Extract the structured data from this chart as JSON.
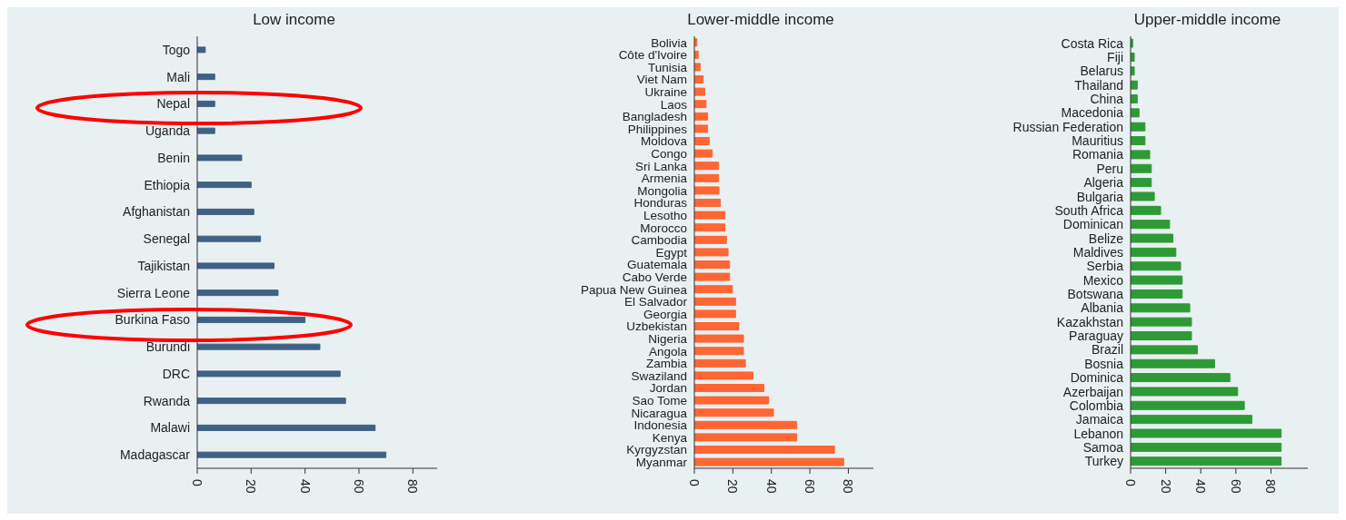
{
  "chart_data": [
    {
      "type": "bar",
      "orientation": "horizontal",
      "title": "Low income",
      "color": "#3f6184",
      "xlim": [
        0,
        89
      ],
      "xticks": [
        0,
        20,
        40,
        60,
        80
      ],
      "categories": [
        "Togo",
        "Mali",
        "Nepal",
        "Uganda",
        "Benin",
        "Ethiopia",
        "Afghanistan",
        "Senegal",
        "Tajikistan",
        "Sierra Leone",
        "Burkina Faso",
        "Burundi",
        "DRC",
        "Rwanda",
        "Malawi",
        "Madagascar"
      ],
      "values": [
        3,
        6.5,
        6.5,
        6.5,
        16.5,
        20,
        21,
        23.5,
        28.5,
        30,
        40,
        45.5,
        53,
        55,
        66,
        70
      ]
    },
    {
      "type": "bar",
      "orientation": "horizontal",
      "title": "Lower-middle income",
      "color": "#ff6633",
      "xlim": [
        0,
        93
      ],
      "xticks": [
        0,
        20,
        40,
        60,
        80
      ],
      "categories": [
        "Bolivia",
        "Côte d'Ivoire",
        "Tunisia",
        "Viet Nam",
        "Ukraine",
        "Laos",
        "Bangladesh",
        "Philippines",
        "Moldova",
        "Congo",
        "Sri Lanka",
        "Armenia",
        "Mongolia",
        "Honduras",
        "Lesotho",
        "Morocco",
        "Cambodia",
        "Egypt",
        "Guatemala",
        "Cabo Verde",
        "Papua New Guinea",
        "El Salvador",
        "Georgia",
        "Uzbekistan",
        "Nigeria",
        "Angola",
        "Zambia",
        "Swaziland",
        "Jordan",
        "Sao Tome",
        "Nicaragua",
        "Indonesia",
        "Kenya",
        "Kyrgyzstan",
        "Myanmar"
      ],
      "values": [
        1.3,
        2,
        3,
        4.6,
        5.4,
        6.1,
        6.9,
        6.9,
        7.7,
        9.3,
        12.6,
        12.6,
        12.8,
        13.5,
        15.9,
        15.9,
        16.7,
        17.5,
        18.3,
        18.3,
        19.8,
        21.4,
        21.4,
        23.1,
        25.5,
        25.5,
        26.5,
        30.4,
        36.1,
        38.6,
        41.1,
        53.2,
        53.2,
        72.8,
        77.6
      ]
    },
    {
      "type": "bar",
      "orientation": "horizontal",
      "title": "Upper-middle income",
      "color": "#2e9a35",
      "xlim": [
        0,
        101
      ],
      "xticks": [
        0,
        20,
        40,
        60,
        80
      ],
      "categories": [
        "Costa Rica",
        "Fiji",
        "Belarus",
        "Thailand",
        "China",
        "Macedonia",
        "Russian Federation",
        "Mauritius",
        "Romania",
        "Peru",
        "Algeria",
        "Bulgaria",
        "South Africa",
        "Dominican",
        "Belize",
        "Maldives",
        "Serbia",
        "Mexico",
        "Botswana",
        "Albania",
        "Kazakhstan",
        "Paraguay",
        "Brazil",
        "Bosnia",
        "Dominica",
        "Azerbaijan",
        "Colombia",
        "Jamaica",
        "Lebanon",
        "Samoa",
        "Turkey"
      ],
      "values": [
        1.2,
        2.1,
        2.1,
        3.8,
        3.8,
        4.8,
        8.2,
        8.2,
        10.9,
        11.8,
        11.8,
        13.5,
        17.1,
        22.2,
        24.1,
        25.8,
        28.5,
        29.4,
        29.4,
        33.7,
        34.7,
        34.7,
        38.1,
        47.9,
        56.6,
        61,
        64.8,
        69.1,
        85.8,
        85.8,
        85.8
      ]
    }
  ]
}
